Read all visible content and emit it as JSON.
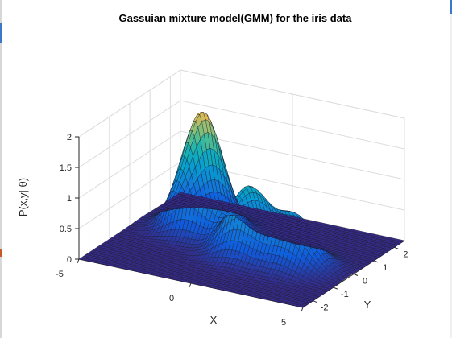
{
  "chart_data": {
    "type": "surface",
    "title": "Gassuian mixture model(GMM) for the iris data",
    "xlabel": "X",
    "ylabel": "Y",
    "zlabel": "P(x,y| θ)",
    "xlim": [
      -5,
      5
    ],
    "ylim": [
      -2.5,
      2.5
    ],
    "zlim": [
      0,
      2
    ],
    "xticks": [
      "-5",
      "0",
      "5"
    ],
    "yticks": [
      "-2",
      "-1",
      "0",
      "1",
      "2"
    ],
    "zticks": [
      "0",
      "0.5",
      "1",
      "1.5",
      "2"
    ],
    "grid": true,
    "colormap": "parula",
    "components": [
      {
        "mean_x": -2.3,
        "mean_y": 0.6,
        "peak": 1.95
      },
      {
        "mean_x": 0.5,
        "mean_y": -0.25,
        "peak": 1.1
      },
      {
        "mean_x": 2.6,
        "mean_y": -0.25,
        "peak": 0.8
      }
    ]
  }
}
